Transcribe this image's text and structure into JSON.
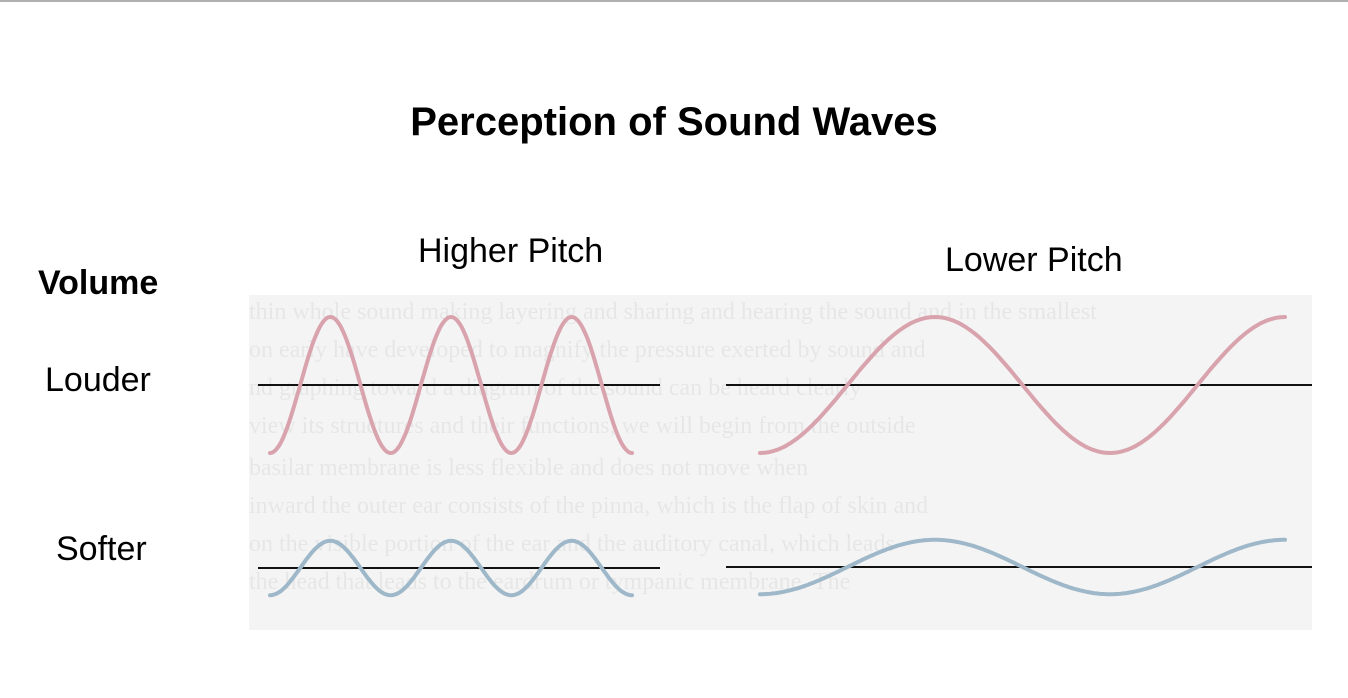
{
  "title": "Perception of Sound Waves",
  "columns": {
    "higher_pitch": "Higher Pitch",
    "lower_pitch": "Lower Pitch"
  },
  "rows": {
    "header": "Volume",
    "louder": "Louder",
    "softer": "Softer"
  },
  "colors": {
    "louder_wave": "#d9a3ae",
    "softer_wave": "#9eb8c9",
    "axis_line": "#111111",
    "panel_background": "#f4f4f4"
  },
  "waves": {
    "louder_higher": {
      "cycles": 3,
      "amplitude": 1.0
    },
    "louder_lower": {
      "cycles": 1.5,
      "amplitude": 1.0
    },
    "softer_higher": {
      "cycles": 3,
      "amplitude": 0.4
    },
    "softer_lower": {
      "cycles": 1.5,
      "amplitude": 0.4
    }
  }
}
